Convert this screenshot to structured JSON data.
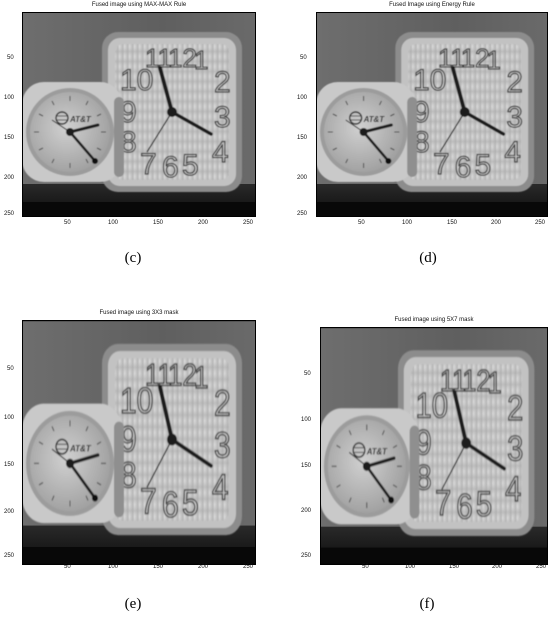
{
  "figure": {
    "panels": [
      {
        "title": "Fused image using MAX-MAX Rule",
        "caption": "(c)",
        "y_ticks": [
          "50",
          "100",
          "150",
          "200",
          "250"
        ],
        "x_ticks": [
          "50",
          "100",
          "150",
          "200",
          "250"
        ]
      },
      {
        "title": "Fused Image using Energy Rule",
        "caption": "(d)",
        "y_ticks": [
          "50",
          "100",
          "150",
          "200",
          "250"
        ],
        "x_ticks": [
          "50",
          "100",
          "150",
          "200",
          "250"
        ]
      },
      {
        "title": "Fused image using 3X3 mask",
        "caption": "(e)",
        "y_ticks": [
          "50",
          "100",
          "150",
          "200",
          "250"
        ],
        "x_ticks": [
          "50",
          "100",
          "150",
          "200",
          "250"
        ]
      },
      {
        "title": "Fused image using 5X7 mask",
        "caption": "(f)",
        "y_ticks": [
          "50",
          "100",
          "150",
          "200",
          "250"
        ],
        "x_ticks": [
          "50",
          "100",
          "150",
          "200",
          "250"
        ]
      }
    ],
    "clock_numerals": [
      "10",
      "11",
      "12",
      "1",
      "2",
      "3",
      "4",
      "5",
      "6",
      "7",
      "8",
      "9"
    ],
    "clock_brand": "AT&T"
  }
}
